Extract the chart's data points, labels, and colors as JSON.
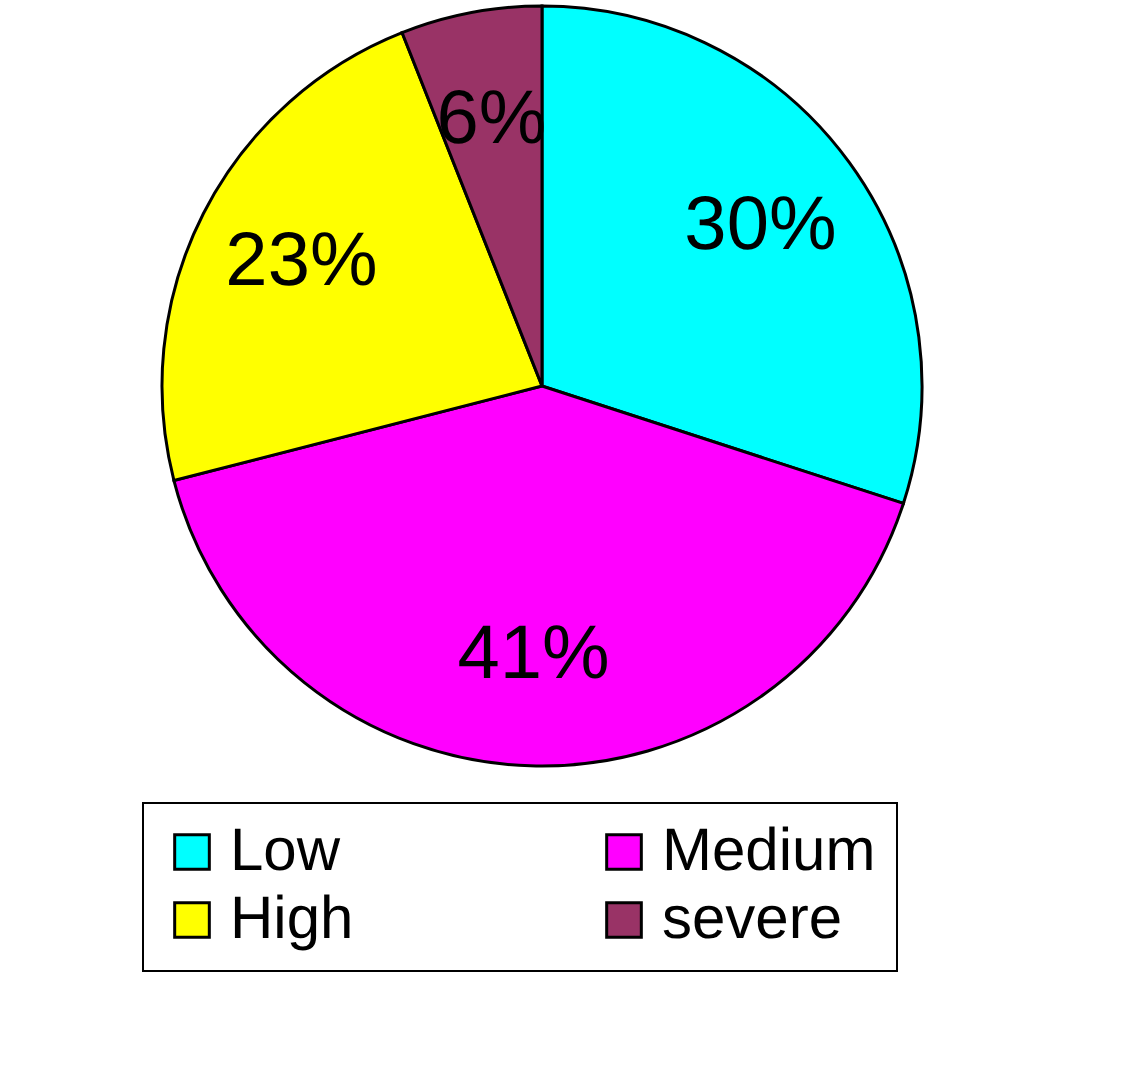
{
  "chart_data": {
    "type": "pie",
    "categories": [
      "Low",
      "Medium",
      "High",
      "severe"
    ],
    "values": [
      30,
      41,
      23,
      6
    ],
    "colors": [
      "#00ffff",
      "#ff00ff",
      "#ffff00",
      "#993366"
    ],
    "value_labels": [
      "30%",
      "41%",
      "23%",
      "6%"
    ],
    "legend": "bottom"
  }
}
